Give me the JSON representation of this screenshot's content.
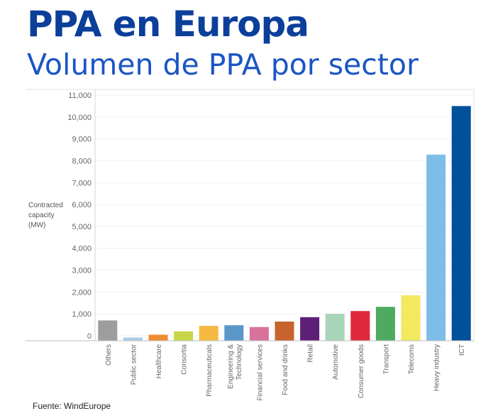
{
  "header": {
    "title": "PPA en Europa",
    "subtitle": "Volumen de PPA por sector"
  },
  "source": "Fuente: WindEurope",
  "chart_data": {
    "type": "bar",
    "title": "",
    "xlabel": "",
    "ylabel_lines": [
      "Contracted",
      "capacity",
      "(MW)"
    ],
    "ylim": [
      -200,
      11000
    ],
    "yticks": [
      0,
      1000,
      2000,
      3000,
      4000,
      5000,
      6000,
      7000,
      8000,
      9000,
      10000,
      11000
    ],
    "ytick_labels": [
      "0",
      "1,000",
      "2,000",
      "3,000",
      "4,000",
      "5,000",
      "6,000",
      "7,000",
      "8,000",
      "9,000",
      "10,000",
      "11,000"
    ],
    "grid": true,
    "categories": [
      [
        "Others"
      ],
      [
        "Public sector"
      ],
      [
        "Healthcare"
      ],
      [
        "Consortia"
      ],
      [
        "Pharmaceuticals"
      ],
      [
        "Engineering &",
        "Technology"
      ],
      [
        "Financial services"
      ],
      [
        "Food and drinks"
      ],
      [
        "Retail"
      ],
      [
        "Automotive"
      ],
      [
        "Consumer goods"
      ],
      [
        "Transport"
      ],
      [
        "Telecoms"
      ],
      [
        "Heavy industry"
      ],
      [
        "ICT"
      ]
    ],
    "values": [
      700,
      -80,
      50,
      200,
      450,
      480,
      400,
      650,
      850,
      1000,
      1130,
      1320,
      1850,
      8280,
      10500
    ],
    "colors": [
      "#9d9d9d",
      "#a9cde9",
      "#f08d2e",
      "#c7d44a",
      "#f5b942",
      "#5b96c8",
      "#d9729a",
      "#c7642e",
      "#5e1f78",
      "#a8d5b8",
      "#e0283c",
      "#4daa5e",
      "#f2e95f",
      "#7dbde8",
      "#00509a"
    ]
  }
}
